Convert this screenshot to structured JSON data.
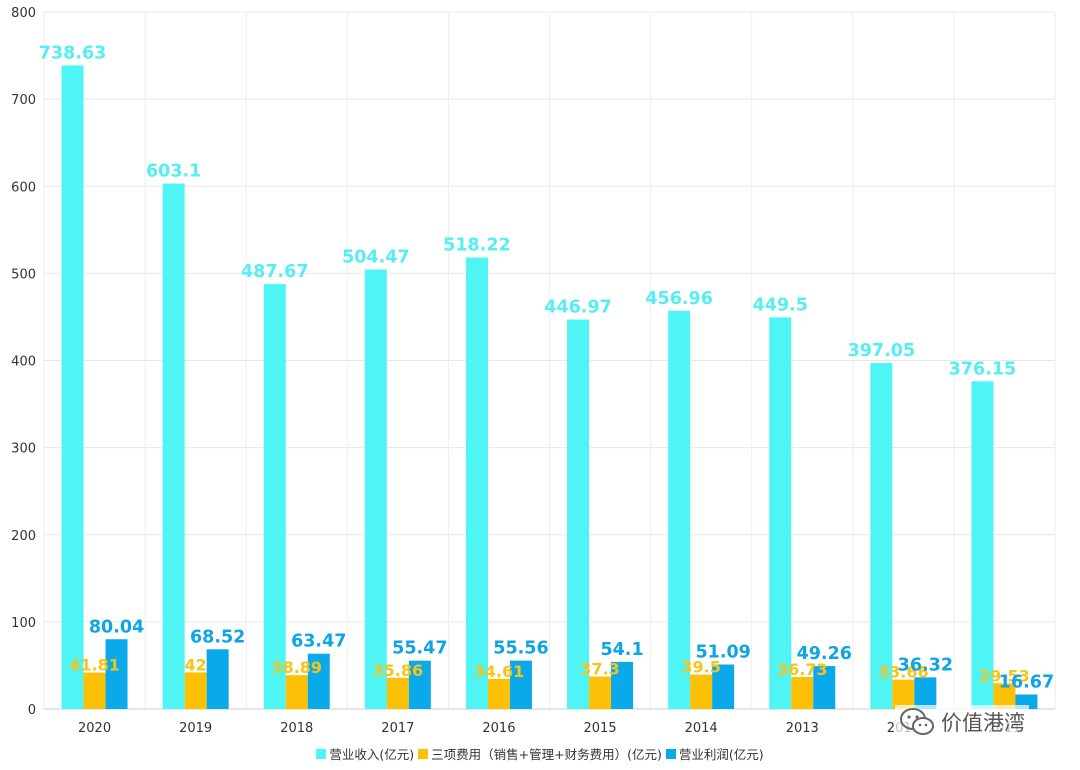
{
  "chart_data": {
    "type": "bar",
    "categories": [
      "2020",
      "2019",
      "2018",
      "2017",
      "2016",
      "2015",
      "2014",
      "2013",
      "2012",
      "2011"
    ],
    "ylim": [
      0,
      800
    ],
    "yticks": [
      0,
      100,
      200,
      300,
      400,
      500,
      600,
      700,
      800
    ],
    "grid": true,
    "legend_position": "bottom",
    "series": [
      {
        "name": "营业收入(亿元)",
        "color": "#4ff5f5",
        "label_color": "#55eef5",
        "values": [
          738.63,
          603.1,
          487.67,
          504.47,
          518.22,
          446.97,
          456.96,
          449.5,
          397.05,
          376.15
        ],
        "labels": [
          "738.63",
          "603.1",
          "487.67",
          "504.47",
          "518.22",
          "446.97",
          "456.96",
          "449.5",
          "397.05",
          "376.15"
        ]
      },
      {
        "name": "三项费用（销售+管理+财务费用）(亿元)",
        "color": "#fcc107",
        "label_color": "#f5c518",
        "values": [
          41.81,
          42,
          38.89,
          35.86,
          34.61,
          37.3,
          39.5,
          36.73,
          33.66,
          29.53
        ],
        "labels": [
          "41.81",
          "42",
          "38.89",
          "35.86",
          "34.61",
          "37.3",
          "39.5",
          "36.73",
          "33.66",
          "29.53"
        ]
      },
      {
        "name": "营业利润(亿元)",
        "color": "#0aa9e9",
        "label_color": "#0ea5e6",
        "values": [
          80.04,
          68.52,
          63.47,
          55.47,
          55.56,
          54.1,
          51.09,
          49.26,
          36.32,
          16.67
        ],
        "labels": [
          "80.04",
          "68.52",
          "63.47",
          "55.47",
          "55.56",
          "54.1",
          "51.09",
          "49.26",
          "36.32",
          "16.67"
        ]
      }
    ]
  },
  "watermark": {
    "text": "价值港湾",
    "icon": "wechat-icon"
  }
}
